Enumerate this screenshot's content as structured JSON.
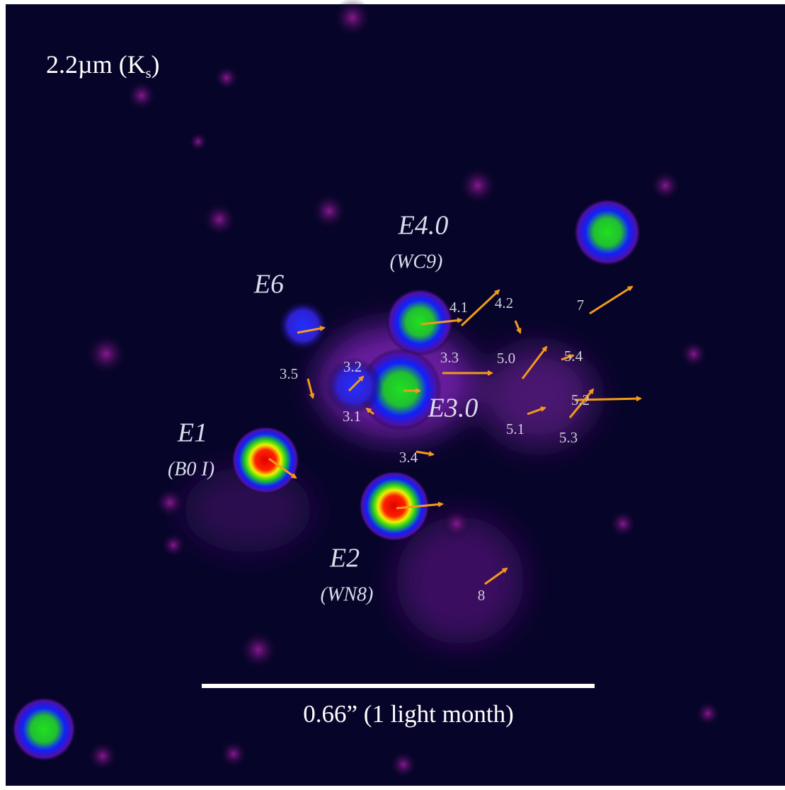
{
  "image": {
    "band": {
      "text": "2.2µm (K",
      "subscript": "s",
      "close": ")"
    },
    "stars": [
      {
        "name": "E4.0",
        "type": "(WC9)"
      },
      {
        "name": "E6"
      },
      {
        "name": "E1",
        "type": "(B0 I)"
      },
      {
        "name": "E2",
        "type": "(WN8)"
      },
      {
        "name": "E3.0"
      }
    ],
    "sources": [
      "4.1",
      "4.2",
      "7",
      "3.3",
      "5.0",
      "5.4",
      "3.2",
      "3.5",
      "5.2",
      "3.1",
      "5.1",
      "5.3",
      "3.4",
      "8"
    ],
    "scale_bar": "0.66” (1 light month)"
  }
}
